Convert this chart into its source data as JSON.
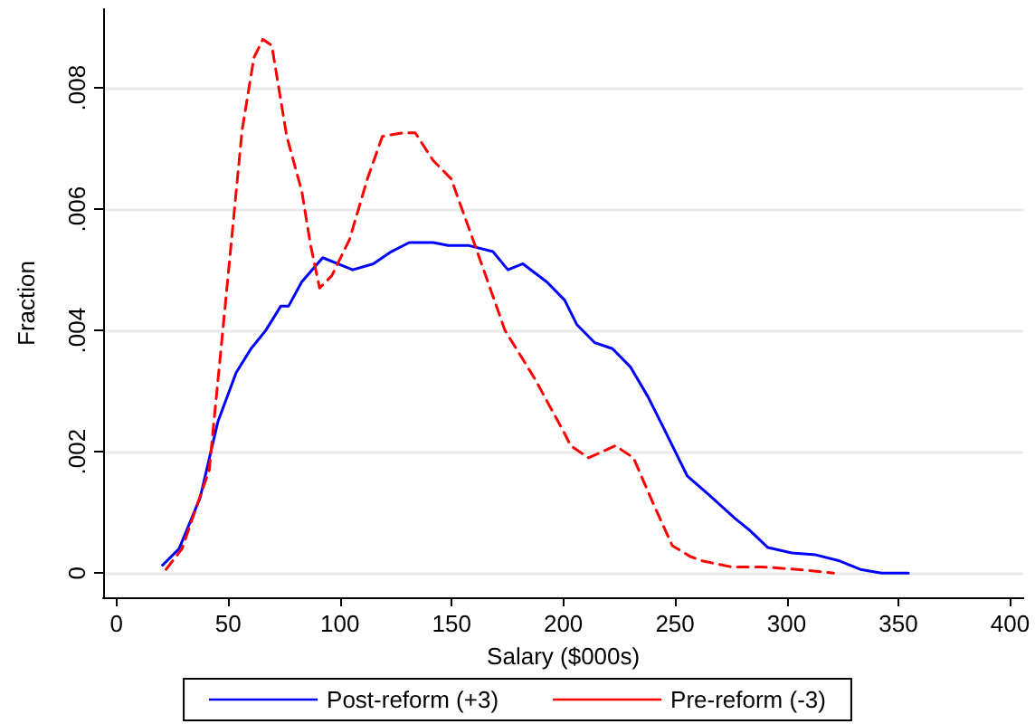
{
  "chart_data": {
    "type": "line",
    "xlabel": "Salary ($000s)",
    "ylabel": "Fraction",
    "xlim": [
      -6,
      406
    ],
    "xticks": [
      0,
      50,
      100,
      150,
      200,
      250,
      300,
      350,
      400
    ],
    "ylim": [
      -0.0004,
      0.0093
    ],
    "yticks": [
      {
        "value": 0,
        "label": "0"
      },
      {
        "value": 0.002,
        "label": ".002"
      },
      {
        "value": 0.004,
        "label": ".004"
      },
      {
        "value": 0.006,
        "label": ".006"
      },
      {
        "value": 0.008,
        "label": ".008"
      }
    ],
    "grid": "y",
    "legend": "bottom",
    "marker": "none",
    "series": [
      {
        "name": "Post-reform (+3)",
        "color": "#0000ff",
        "line_style": "solid",
        "x": [
          20.6,
          28,
          37.4,
          45.4,
          53.5,
          60.2,
          66.8,
          73.5,
          77,
          82.9,
          92.3,
          99,
          105.7,
          115,
          123,
          131,
          141.8,
          148.5,
          157.8,
          168.5,
          175.2,
          181.9,
          192.6,
          200.6,
          206,
          214,
          222,
          230,
          238,
          244.8,
          255.5,
          264.9,
          276.9,
          283.6,
          291.6,
          302.3,
          313,
          323.7,
          333,
          342.4,
          354.5
        ],
        "values": [
          0.00013,
          0.0004,
          0.00124,
          0.0025,
          0.0033,
          0.0037,
          0.004,
          0.0044,
          0.0044,
          0.0048,
          0.0052,
          0.0051,
          0.005,
          0.0051,
          0.0053,
          0.00545,
          0.00545,
          0.0054,
          0.0054,
          0.0053,
          0.005,
          0.0051,
          0.0048,
          0.0045,
          0.0041,
          0.0038,
          0.0037,
          0.0034,
          0.0029,
          0.0024,
          0.0016,
          0.0013,
          0.0009,
          0.0007,
          0.00042,
          0.00033,
          0.0003,
          0.0002,
          6e-05,
          0,
          0
        ]
      },
      {
        "name": "Pre-reform (-3)",
        "color": "#ff0000",
        "line_style": "dashed",
        "x": [
          22.2,
          29.3,
          41.5,
          48.1,
          56.2,
          61.5,
          65.5,
          69.5,
          76.2,
          82.9,
          86.9,
          90.9,
          96.3,
          104.3,
          112.3,
          119,
          128.4,
          133.7,
          141.8,
          149.8,
          160.5,
          173.9,
          187.3,
          200.6,
          203.3,
          211.3,
          223.3,
          231.4,
          240.8,
          248.8,
          257,
          262.2,
          275.5,
          289,
          305,
          321
        ],
        "values": [
          6e-05,
          0.0004,
          0.0017,
          0.0042,
          0.0073,
          0.0085,
          0.0088,
          0.0087,
          0.0072,
          0.0063,
          0.0054,
          0.0047,
          0.0049,
          0.0055,
          0.0065,
          0.0072,
          0.00726,
          0.00726,
          0.0068,
          0.0065,
          0.0054,
          0.004,
          0.0032,
          0.0023,
          0.0021,
          0.0019,
          0.0021,
          0.0019,
          0.0011,
          0.00045,
          0.00027,
          0.0002,
          0.0001,
          0.0001,
          6e-05,
          0
        ]
      }
    ]
  }
}
